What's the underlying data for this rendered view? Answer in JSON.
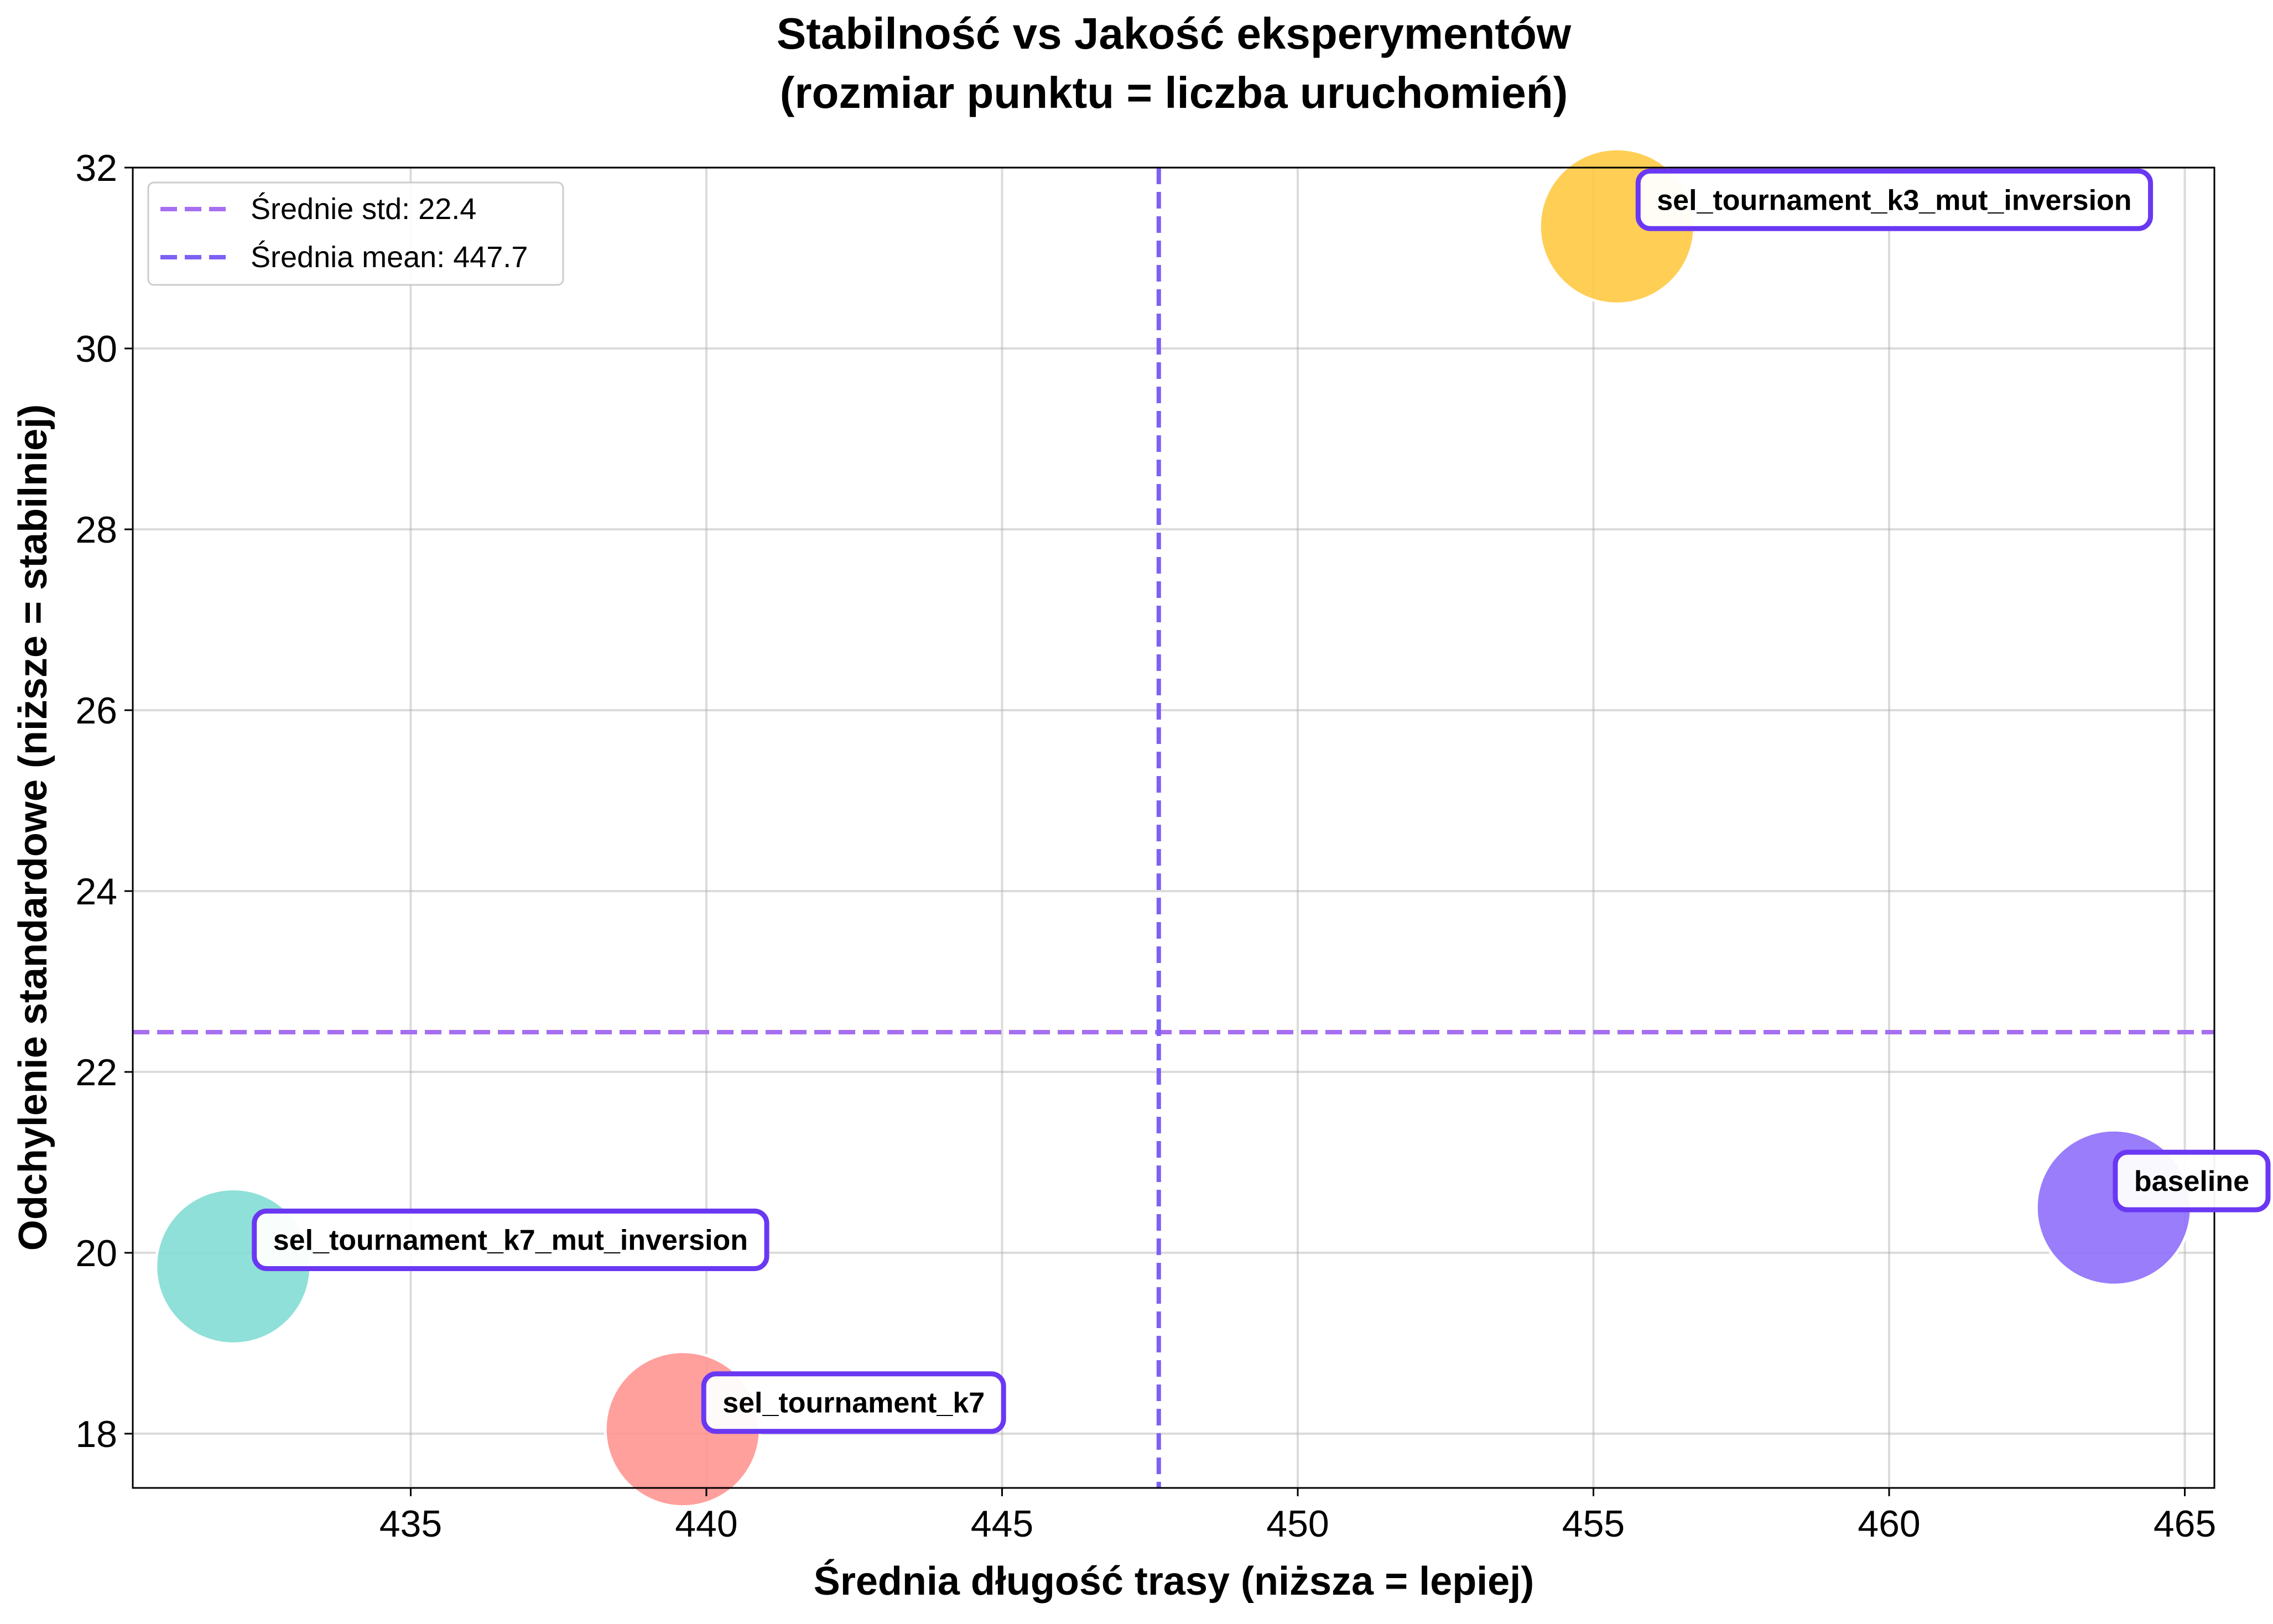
{
  "chart_data": {
    "type": "scatter",
    "title_lines": [
      "Stabilność vs Jakość eksperymentów",
      "(rozmiar punktu = liczba uruchomień)"
    ],
    "xlabel": "Średnia długość trasy (niższa = lepiej)",
    "ylabel": "Odchylenie standardowe (niższe = stabilniej)",
    "xlim": [
      430.3,
      465.5
    ],
    "ylim": [
      17.4,
      32.0
    ],
    "xticks": [
      435,
      440,
      445,
      450,
      455,
      460,
      465
    ],
    "yticks": [
      18,
      20,
      22,
      24,
      26,
      28,
      30,
      32
    ],
    "grid": true,
    "legend_position": "top-left",
    "points": [
      {
        "label": "sel_tournament_k3_mut_inversion",
        "x": 455.4,
        "y": 31.35,
        "color": "#FFC73D"
      },
      {
        "label": "baseline",
        "x": 463.8,
        "y": 20.5,
        "color": "#8B6BFA"
      },
      {
        "label": "sel_tournament_k7_mut_inversion",
        "x": 432.0,
        "y": 19.85,
        "color": "#7FDCD3"
      },
      {
        "label": "sel_tournament_k7",
        "x": 439.6,
        "y": 18.05,
        "color": "#FF9390"
      }
    ],
    "reference_lines": [
      {
        "orientation": "horizontal",
        "label": "Średnie std: 22.4",
        "value": 22.44,
        "color": "#A66EF0"
      },
      {
        "orientation": "vertical",
        "label": "Średnia mean: 447.7",
        "value": 447.65,
        "color": "#7E60F5"
      }
    ],
    "annotation_border_color": "#6A38F2"
  }
}
